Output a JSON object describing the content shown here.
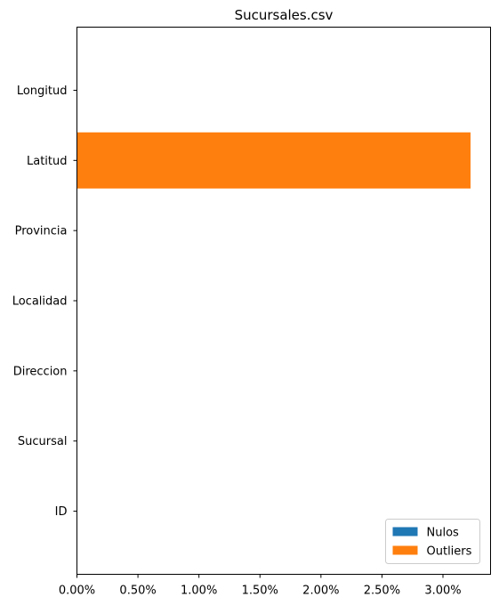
{
  "chart_data": {
    "type": "bar",
    "orientation": "horizontal",
    "stacked": true,
    "title": "Sucursales.csv",
    "xlabel": "",
    "ylabel": "",
    "categories": [
      "ID",
      "Sucursal",
      "Direccion",
      "Localidad",
      "Provincia",
      "Latitud",
      "Longitud"
    ],
    "series": [
      {
        "name": "Nulos",
        "color": "#1f77b4",
        "values": [
          0,
          0,
          0,
          0,
          0,
          0,
          0
        ]
      },
      {
        "name": "Outliers",
        "color": "#ff7f0e",
        "values": [
          0,
          0,
          0,
          0,
          0,
          3.226,
          0
        ]
      }
    ],
    "xlim": [
      0,
      3.39
    ],
    "xticks": [
      0,
      0.5,
      1.0,
      1.5,
      2.0,
      2.5,
      3.0
    ],
    "xtick_labels": [
      "0.00%",
      "0.50%",
      "1.00%",
      "1.50%",
      "2.00%",
      "2.50%",
      "3.00%"
    ],
    "grid": false,
    "legend_position": "lower-right"
  }
}
